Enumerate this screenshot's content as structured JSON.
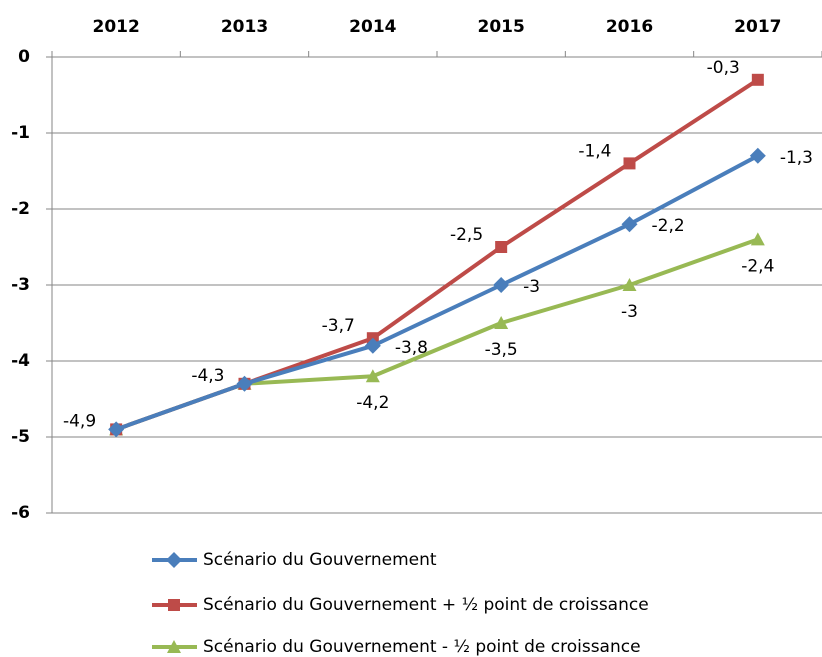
{
  "chart_data": {
    "type": "line",
    "categories": [
      "2012",
      "2013",
      "2014",
      "2015",
      "2016",
      "2017"
    ],
    "ylim": [
      -6,
      0
    ],
    "yticks": [
      0,
      -1,
      -2,
      -3,
      -4,
      -5,
      -6
    ],
    "grid": true,
    "legend": "bottom",
    "series": [
      {
        "name": "Scénario du Gouvernement",
        "color": "#4a7ebb",
        "marker": "diamond",
        "values": [
          -4.9,
          -4.3,
          -3.8,
          -3.0,
          -2.2,
          -1.3
        ],
        "value_labels": [
          "-4,9",
          "-4,3",
          "-3,8",
          "-3",
          "-2,2",
          "-1,3"
        ]
      },
      {
        "name": "Scénario du Gouvernement + ½ point de croissance",
        "color": "#be4b48",
        "marker": "square",
        "values": [
          -4.9,
          -4.3,
          -3.7,
          -2.5,
          -1.4,
          -0.3
        ],
        "value_labels": [
          null,
          null,
          "-3,7",
          "-2,5",
          "-1,4",
          "-0,3"
        ]
      },
      {
        "name": "Scénario du Gouvernement - ½ point de croissance",
        "color": "#98b954",
        "marker": "triangle",
        "values": [
          -4.9,
          -4.3,
          -4.2,
          -3.5,
          -3.0,
          -2.4
        ],
        "value_labels": [
          null,
          null,
          "-4,2",
          "-3,5",
          "-3",
          "-2,4"
        ]
      }
    ]
  }
}
